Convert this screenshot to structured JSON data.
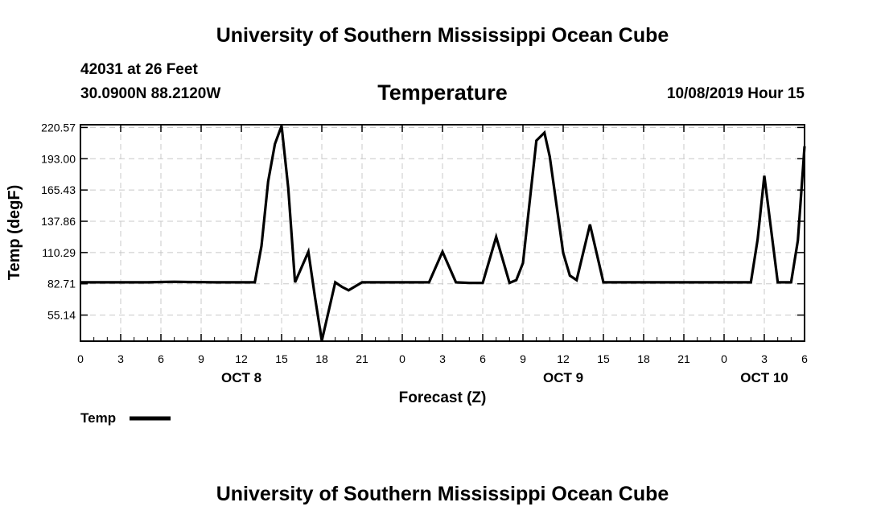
{
  "header": {
    "title": "University of Southern Mississippi Ocean Cube",
    "station": "42031 at 26 Feet",
    "coords": "30.0900N 88.2120W",
    "subtitle": "Temperature",
    "datetime": "10/08/2019 Hour 15"
  },
  "footer": {
    "title": "University of Southern Mississippi Ocean Cube"
  },
  "chart_data": {
    "type": "line",
    "title": "Temperature",
    "xlabel": "Forecast (Z)",
    "ylabel": "Temp (degF)",
    "y_ticks": [
      "220.57",
      "193.00",
      "165.43",
      "137.86",
      "110.29",
      "82.71",
      "55.14"
    ],
    "y_tick_values": [
      220.57,
      193.0,
      165.43,
      137.86,
      110.29,
      82.71,
      55.14
    ],
    "ylim": [
      32.14,
      223.0
    ],
    "x_ticks": [
      "0",
      "3",
      "6",
      "9",
      "12",
      "15",
      "18",
      "21",
      "0",
      "3",
      "6",
      "9",
      "12",
      "15",
      "18",
      "21",
      "0",
      "3",
      "6"
    ],
    "x_tick_values": [
      0,
      3,
      6,
      9,
      12,
      15,
      18,
      21,
      24,
      27,
      30,
      33,
      36,
      39,
      42,
      45,
      48,
      51,
      54
    ],
    "xlim": [
      0,
      54
    ],
    "day_labels": [
      {
        "label": "OCT 8",
        "x": 12
      },
      {
        "label": "OCT 9",
        "x": 36
      },
      {
        "label": "OCT 10",
        "x": 51
      }
    ],
    "grid": true,
    "legend": "bottom-left",
    "color": "#000000",
    "series": [
      {
        "name": "Temp",
        "x": [
          0,
          1,
          2,
          3,
          4,
          5,
          6,
          7,
          8,
          9,
          10,
          11,
          12,
          13,
          13.5,
          14,
          14.5,
          15,
          15.5,
          16,
          17,
          17.5,
          18,
          19,
          19.5,
          20,
          21,
          22,
          23,
          24,
          25,
          26,
          27,
          28,
          29,
          30,
          31,
          32,
          32.5,
          33,
          34,
          34.6,
          35,
          36,
          36.5,
          37,
          38,
          39,
          40,
          41,
          42,
          43,
          44,
          45,
          46,
          47,
          48,
          49,
          50,
          50.5,
          51,
          52,
          53,
          53.5,
          54
        ],
        "values": [
          84,
          84,
          84,
          84,
          84,
          84,
          84.3,
          84.5,
          84.3,
          84.2,
          84,
          84,
          84,
          84,
          116,
          173,
          206,
          222,
          167,
          84,
          111,
          70,
          32.5,
          84,
          80,
          77,
          84,
          84,
          84,
          84,
          84,
          84,
          111,
          84,
          83.5,
          83.5,
          124,
          83.5,
          86,
          101,
          209,
          216,
          195,
          110,
          90,
          86,
          135,
          84,
          84,
          84,
          84,
          84,
          84,
          84,
          84,
          84,
          84,
          84,
          84,
          122,
          178,
          84,
          84,
          121,
          204
        ]
      }
    ]
  }
}
